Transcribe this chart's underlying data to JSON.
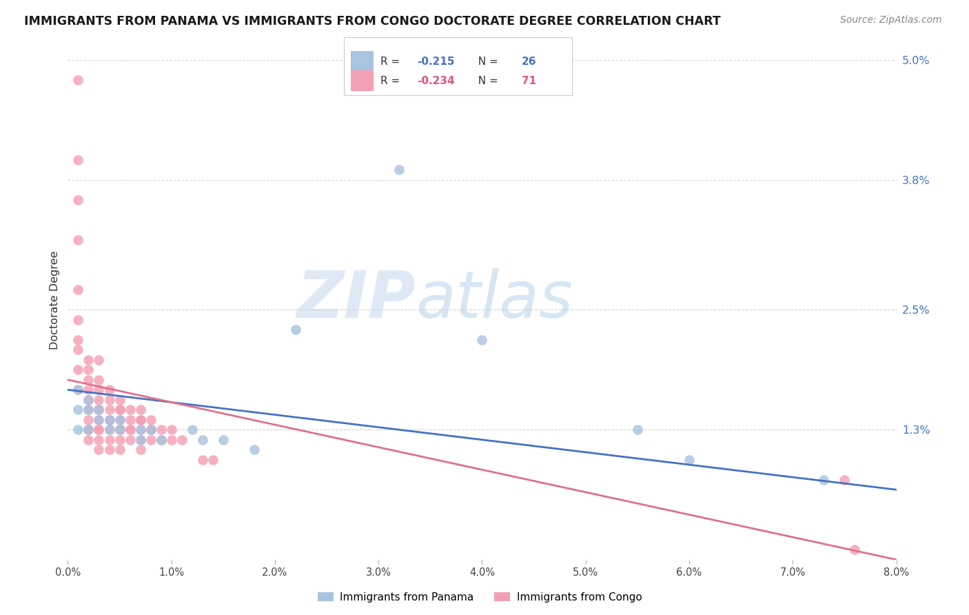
{
  "title": "IMMIGRANTS FROM PANAMA VS IMMIGRANTS FROM CONGO DOCTORATE DEGREE CORRELATION CHART",
  "source": "Source: ZipAtlas.com",
  "ylabel": "Doctorate Degree",
  "xlim": [
    0.0,
    0.08
  ],
  "ylim": [
    0.0,
    0.052
  ],
  "ytick_right_vals": [
    0.013,
    0.025,
    0.038,
    0.05
  ],
  "ytick_right_labels": [
    "1.3%",
    "2.5%",
    "3.8%",
    "5.0%"
  ],
  "panama_color": "#a8c4e0",
  "congo_color": "#f4a0b4",
  "panama_label": "Immigrants from Panama",
  "congo_label": "Immigrants from Congo",
  "panama_R": "-0.215",
  "panama_N": "26",
  "congo_R": "-0.234",
  "congo_N": "71",
  "line_blue": "#4472c4",
  "line_pink": "#e0708a",
  "watermark_zip": "ZIP",
  "watermark_atlas": "atlas",
  "background_color": "#ffffff",
  "grid_color": "#cccccc",
  "panama_scatter_x": [
    0.001,
    0.001,
    0.001,
    0.002,
    0.002,
    0.002,
    0.003,
    0.003,
    0.004,
    0.004,
    0.005,
    0.005,
    0.007,
    0.007,
    0.008,
    0.009,
    0.012,
    0.013,
    0.015,
    0.018,
    0.022,
    0.032,
    0.04,
    0.055,
    0.06,
    0.073
  ],
  "panama_scatter_y": [
    0.017,
    0.015,
    0.013,
    0.016,
    0.015,
    0.013,
    0.015,
    0.014,
    0.014,
    0.013,
    0.014,
    0.013,
    0.013,
    0.012,
    0.013,
    0.012,
    0.013,
    0.012,
    0.012,
    0.011,
    0.023,
    0.039,
    0.022,
    0.013,
    0.01,
    0.008
  ],
  "congo_scatter_x": [
    0.001,
    0.001,
    0.001,
    0.001,
    0.001,
    0.001,
    0.001,
    0.001,
    0.001,
    0.001,
    0.002,
    0.002,
    0.002,
    0.002,
    0.002,
    0.002,
    0.002,
    0.002,
    0.002,
    0.002,
    0.003,
    0.003,
    0.003,
    0.003,
    0.003,
    0.003,
    0.003,
    0.003,
    0.003,
    0.003,
    0.003,
    0.004,
    0.004,
    0.004,
    0.004,
    0.004,
    0.004,
    0.004,
    0.004,
    0.005,
    0.005,
    0.005,
    0.005,
    0.005,
    0.005,
    0.005,
    0.005,
    0.006,
    0.006,
    0.006,
    0.006,
    0.006,
    0.007,
    0.007,
    0.007,
    0.007,
    0.007,
    0.007,
    0.008,
    0.008,
    0.008,
    0.008,
    0.009,
    0.009,
    0.01,
    0.01,
    0.011,
    0.013,
    0.014,
    0.075,
    0.076
  ],
  "congo_scatter_y": [
    0.048,
    0.04,
    0.036,
    0.032,
    0.027,
    0.024,
    0.022,
    0.021,
    0.019,
    0.017,
    0.02,
    0.019,
    0.018,
    0.017,
    0.016,
    0.015,
    0.014,
    0.013,
    0.013,
    0.012,
    0.02,
    0.018,
    0.017,
    0.016,
    0.015,
    0.015,
    0.014,
    0.013,
    0.013,
    0.012,
    0.011,
    0.017,
    0.016,
    0.015,
    0.014,
    0.014,
    0.013,
    0.012,
    0.011,
    0.016,
    0.015,
    0.015,
    0.014,
    0.013,
    0.013,
    0.012,
    0.011,
    0.015,
    0.014,
    0.013,
    0.013,
    0.012,
    0.015,
    0.014,
    0.014,
    0.013,
    0.012,
    0.011,
    0.014,
    0.013,
    0.013,
    0.012,
    0.013,
    0.012,
    0.013,
    0.012,
    0.012,
    0.01,
    0.01,
    0.008,
    0.001
  ],
  "line_panama_start_y": 0.017,
  "line_panama_end_y": 0.007,
  "line_congo_start_y": 0.018,
  "line_congo_end_y": 0.0
}
